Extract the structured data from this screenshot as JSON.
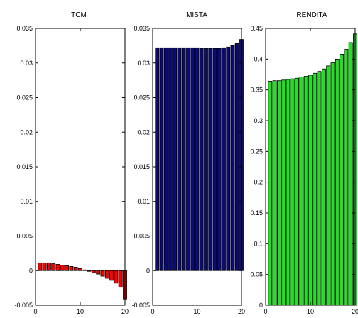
{
  "chart_data": [
    {
      "type": "bar",
      "title": "TCM",
      "color": "#ff0000",
      "x": [
        1,
        2,
        3,
        4,
        5,
        6,
        7,
        8,
        9,
        10,
        11,
        12,
        13,
        14,
        15,
        16,
        17,
        18,
        19,
        20
      ],
      "values": [
        0.0011,
        0.0011,
        0.0011,
        0.001,
        0.0009,
        0.0008,
        0.0007,
        0.0006,
        0.0005,
        0.0003,
        0.0001,
        -0.0001,
        -0.0003,
        -0.0005,
        -0.0008,
        -0.0011,
        -0.0014,
        -0.0018,
        -0.0024,
        -0.0041
      ],
      "xlim": [
        0,
        20
      ],
      "ylim": [
        -0.005,
        0.035
      ],
      "xticks": [
        0,
        10,
        20
      ],
      "yticks": [
        -0.005,
        0,
        0.005,
        0.01,
        0.015,
        0.02,
        0.025,
        0.03,
        0.035
      ],
      "xtick_labels": [
        "0",
        "10",
        "20"
      ],
      "ytick_labels": [
        "-0.005",
        "0",
        "0.005",
        "0.01",
        "0.015",
        "0.02",
        "0.025",
        "0.03",
        "0.035"
      ]
    },
    {
      "type": "bar",
      "title": "MISTA",
      "color": "#0a0a78",
      "x": [
        1,
        2,
        3,
        4,
        5,
        6,
        7,
        8,
        9,
        10,
        11,
        12,
        13,
        14,
        15,
        16,
        17,
        18,
        19,
        20
      ],
      "values": [
        0.0322,
        0.0322,
        0.0322,
        0.0322,
        0.0322,
        0.0322,
        0.0322,
        0.0322,
        0.0322,
        0.0322,
        0.0321,
        0.0321,
        0.0321,
        0.0321,
        0.0321,
        0.0322,
        0.0323,
        0.0325,
        0.0328,
        0.0334
      ],
      "xlim": [
        0,
        20
      ],
      "ylim": [
        -0.005,
        0.035
      ],
      "xticks": [
        0,
        10,
        20
      ],
      "yticks": [
        -0.005,
        0,
        0.005,
        0.01,
        0.015,
        0.02,
        0.025,
        0.03,
        0.035
      ],
      "xtick_labels": [
        "0",
        "10",
        "20"
      ],
      "ytick_labels": [
        "-0.005",
        "0",
        "0.005",
        "0.01",
        "0.015",
        "0.02",
        "0.025",
        "0.03",
        "0.035"
      ]
    },
    {
      "type": "bar",
      "title": "RENDITA",
      "color": "#22e022",
      "x": [
        1,
        2,
        3,
        4,
        5,
        6,
        7,
        8,
        9,
        10,
        11,
        12,
        13,
        14,
        15,
        16,
        17,
        18,
        19,
        20
      ],
      "values": [
        0.364,
        0.365,
        0.365,
        0.366,
        0.367,
        0.368,
        0.369,
        0.371,
        0.372,
        0.374,
        0.377,
        0.38,
        0.384,
        0.389,
        0.394,
        0.4,
        0.408,
        0.416,
        0.427,
        0.441
      ],
      "xlim": [
        0,
        20
      ],
      "ylim": [
        0,
        0.45
      ],
      "xticks": [
        0,
        10,
        20
      ],
      "yticks": [
        0,
        0.05,
        0.1,
        0.15,
        0.2,
        0.25,
        0.3,
        0.35,
        0.4,
        0.45
      ],
      "xtick_labels": [
        "0",
        "10",
        "20"
      ],
      "ytick_labels": [
        "0",
        "0.05",
        "0.1",
        "0.15",
        "0.2",
        "0.25",
        "0.3",
        "0.35",
        "0.4",
        "0.45"
      ]
    }
  ]
}
